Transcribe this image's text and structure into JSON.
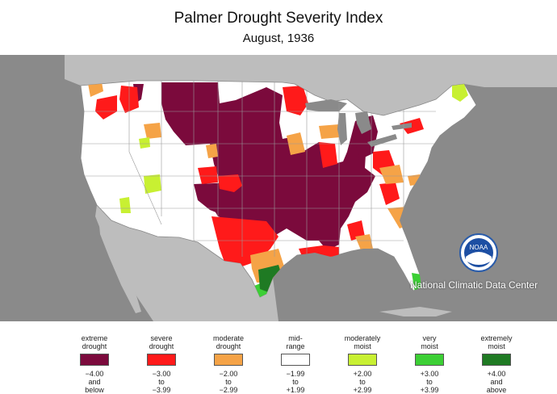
{
  "title": "Palmer Drought Severity Index",
  "subtitle": "August, 1936",
  "agency": "National Climatic Data Center",
  "logo_text": "NOAA",
  "colors": {
    "extreme_drought": "#7b0a3c",
    "severe_drought": "#ff1a1a",
    "moderate_drought": "#f5a347",
    "mid_range": "#ffffff",
    "moderately_moist": "#c8f032",
    "very_moist": "#3ccf35",
    "extremely_moist": "#1f7a23",
    "background_land": "#bdbdbd",
    "ocean": "#8a8a8a",
    "boundaries": "#9a9a9a"
  },
  "legend": [
    {
      "label_1": "extreme",
      "label_2": "drought",
      "range_1": "−4.00",
      "range_2": "and",
      "range_3": "below",
      "color": "#7b0a3c"
    },
    {
      "label_1": "severe",
      "label_2": "drought",
      "range_1": "−3.00",
      "range_2": "to",
      "range_3": "−3.99",
      "color": "#ff1a1a"
    },
    {
      "label_1": "moderate",
      "label_2": "drought",
      "range_1": "−2.00",
      "range_2": "to",
      "range_3": "−2.99",
      "color": "#f5a347"
    },
    {
      "label_1": "mid-",
      "label_2": "range",
      "range_1": "−1.99",
      "range_2": "to",
      "range_3": "+1.99",
      "color": "#ffffff"
    },
    {
      "label_1": "moderately",
      "label_2": "moist",
      "range_1": "+2.00",
      "range_2": "to",
      "range_3": "+2.99",
      "color": "#c8f032"
    },
    {
      "label_1": "very",
      "label_2": "moist",
      "range_1": "+3.00",
      "range_2": "to",
      "range_3": "+3.99",
      "color": "#3ccf35"
    },
    {
      "label_1": "extremely",
      "label_2": "moist",
      "range_1": "+4.00",
      "range_2": "and",
      "range_3": "above",
      "color": "#1f7a23"
    }
  ]
}
